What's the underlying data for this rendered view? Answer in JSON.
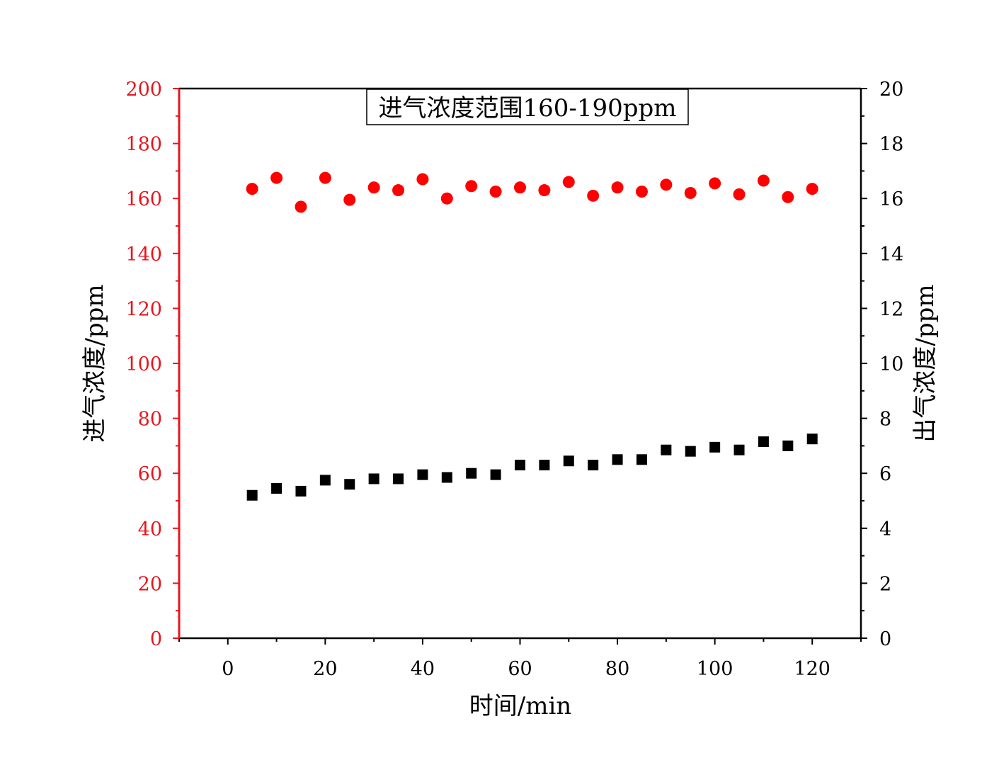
{
  "chart_data": {
    "type": "scatter",
    "title": "进气浓度范围160-190ppm",
    "xlabel": "时间/min",
    "ylabel_left": "进气浓度/ppm",
    "ylabel_right": "出气浓度/ppm",
    "xlim": [
      -10,
      130
    ],
    "ylim_left": [
      0,
      200
    ],
    "ylim_right": [
      0,
      20
    ],
    "x_ticks": [
      0,
      20,
      40,
      60,
      80,
      100,
      120
    ],
    "y_left_ticks": [
      0,
      20,
      40,
      60,
      80,
      100,
      120,
      140,
      160,
      180,
      200
    ],
    "y_right_ticks": [
      0,
      2,
      4,
      6,
      8,
      10,
      12,
      14,
      16,
      18,
      20
    ],
    "grid": false,
    "legend": "none",
    "colors": {
      "left_axis": "#e8141c",
      "right_axis": "#000000",
      "inlet": "#ff0000",
      "outlet": "#000000"
    },
    "series": [
      {
        "axis": "left",
        "marker": "circle",
        "color": "#ff0000",
        "x": [
          5,
          10,
          15,
          20,
          25,
          30,
          35,
          40,
          45,
          50,
          55,
          60,
          65,
          70,
          75,
          80,
          85,
          90,
          95,
          100,
          105,
          110,
          115,
          120
        ],
        "values": [
          163.5,
          167.5,
          157,
          167.5,
          159.5,
          164,
          163,
          167,
          160,
          164.5,
          162.5,
          164,
          163,
          166,
          161,
          164,
          162.5,
          165,
          162,
          165.5,
          161.5,
          166.5,
          160.5,
          163.5
        ]
      },
      {
        "axis": "right",
        "marker": "square",
        "color": "#000000",
        "x": [
          5,
          10,
          15,
          20,
          25,
          30,
          35,
          40,
          45,
          50,
          55,
          60,
          65,
          70,
          75,
          80,
          85,
          90,
          95,
          100,
          105,
          110,
          115,
          120
        ],
        "values": [
          5.2,
          5.45,
          5.35,
          5.75,
          5.6,
          5.8,
          5.8,
          5.95,
          5.85,
          6.0,
          5.95,
          6.3,
          6.3,
          6.45,
          6.3,
          6.5,
          6.5,
          6.85,
          6.8,
          6.95,
          6.85,
          7.15,
          7.0,
          7.25
        ]
      }
    ]
  }
}
